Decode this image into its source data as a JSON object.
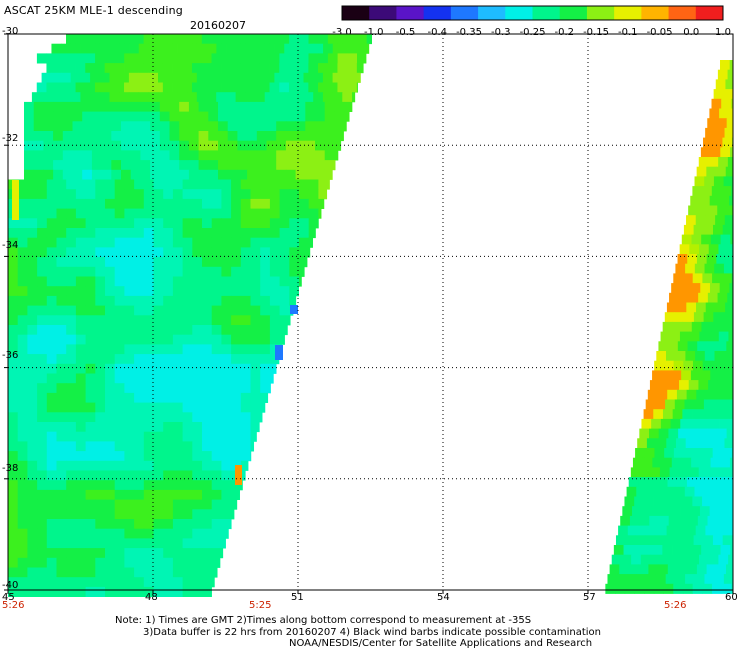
{
  "header": {
    "title": "ASCAT 25KM MLE-1 descending",
    "date": "20160207"
  },
  "colorbar": {
    "tick_labels": [
      "-3.0",
      "-1.0",
      "-0.5",
      "-0.4",
      "-0.35",
      "-0.3",
      "-0.25",
      "-0.2",
      "-0.15",
      "-0.1",
      "-0.05",
      "0.0",
      "1.0"
    ],
    "colors": [
      "#1a0014",
      "#3c0a78",
      "#5a14c8",
      "#1432f0",
      "#1e78ff",
      "#1ebcff",
      "#00f0e6",
      "#00f58c",
      "#14f046",
      "#8cf014",
      "#e6f000",
      "#ffb400",
      "#ff6414",
      "#f01e1e"
    ]
  },
  "map": {
    "lat_labels": [
      "-30",
      "-32",
      "-34",
      "-36",
      "-38",
      "-40"
    ],
    "lon_labels": [
      "45",
      "48",
      "51",
      "54",
      "57",
      "60"
    ],
    "grid_lats": [
      -32,
      -34,
      -36,
      -38
    ],
    "grid_lons": [
      48,
      51,
      54,
      57
    ],
    "lat_range": [
      -40,
      -30
    ],
    "lon_range": [
      45,
      60
    ]
  },
  "times": {
    "left": "5:26",
    "middle": "5:25",
    "right": "5:26"
  },
  "notes": {
    "line1": "Note: 1) Times are GMT 2)Times along bottom correspond to measurement at -35S",
    "line2": "3)Data buffer is 22 hrs from 20160207 4) Black wind barbs indicate possible contamination",
    "line3": "NOAA/NESDIS/Center for Satellite Applications and Research"
  }
}
